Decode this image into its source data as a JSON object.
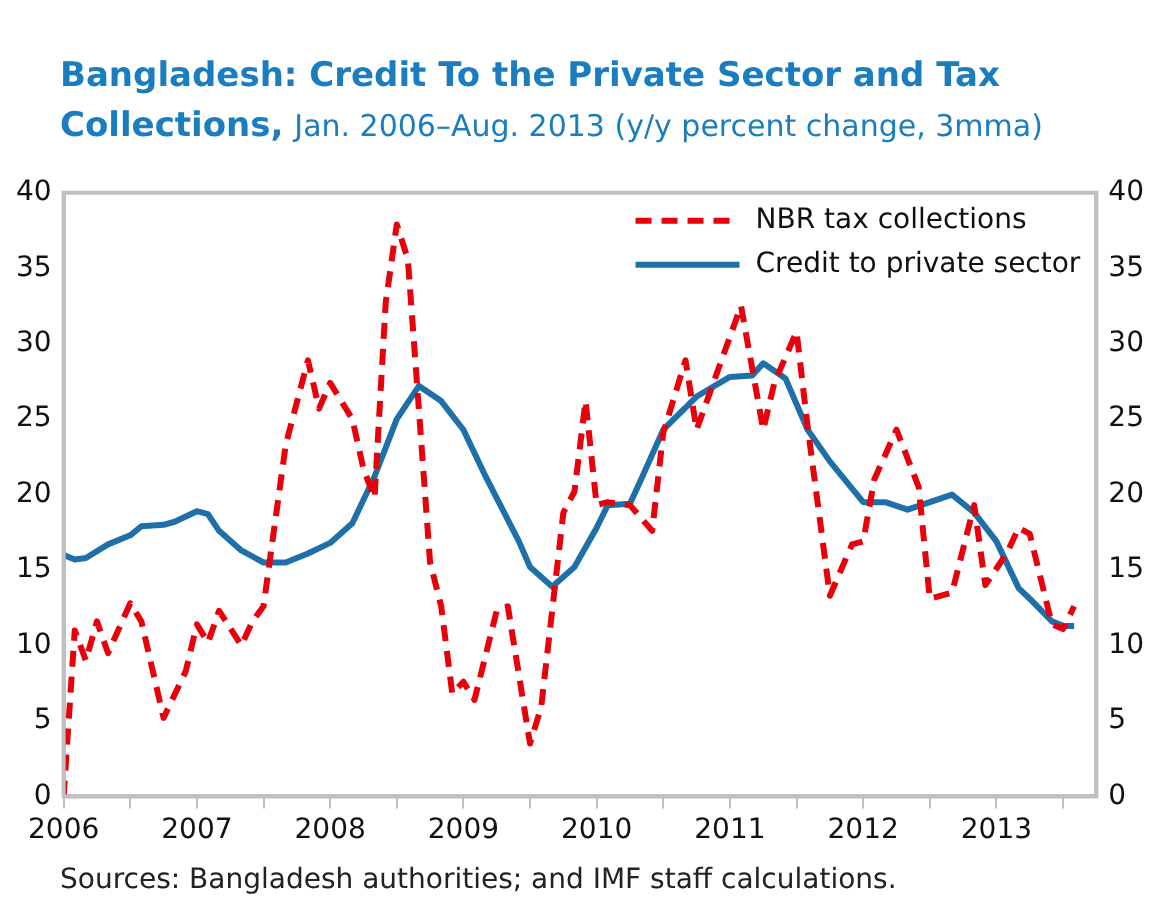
{
  "chart_data": {
    "type": "line",
    "title": "Bangladesh: Credit To the Private Sector and Tax Collections,",
    "subtitle": "Jan. 2006–Aug. 2013 (y/y percent change, 3mma)",
    "annotations": [
      "Sources: Bangladesh authorities; and IMF staff calculations."
    ],
    "legend": "top right",
    "grid": false,
    "marker": "none",
    "xlim": [
      "2006-01",
      "2013-10"
    ],
    "xticks": [
      "2006",
      {
        "value": "2006-07",
        "label": null
      },
      "2007",
      {
        "value": "2007-07",
        "label": null
      },
      "2008",
      {
        "value": "2008-07",
        "label": null
      },
      "2009",
      {
        "value": "2009-07",
        "label": null
      },
      "2010",
      {
        "value": "2010-07",
        "label": null
      },
      "2011",
      {
        "value": "2011-07",
        "label": null
      },
      "2012",
      {
        "value": "2012-07",
        "label": null
      },
      "2013",
      {
        "value": "2013-07",
        "label": null
      }
    ],
    "ylim": [
      0,
      40
    ],
    "yticks": [
      0,
      5,
      10,
      15,
      20,
      25,
      30,
      35,
      40
    ],
    "y2lim": [
      0,
      40
    ],
    "y2ticks": [
      0,
      5,
      10,
      15,
      20,
      25,
      30,
      35,
      40
    ],
    "series": [
      {
        "name": "NBR tax collections",
        "color": "#e8000b",
        "line_style": "dashed",
        "x": [
          "2006-01",
          "2006-02",
          "2006-03",
          "2006-04",
          "2006-05",
          "2006-07",
          "2006-08",
          "2006-10",
          "2006-12",
          "2007-01",
          "2007-02",
          "2007-03",
          "2007-05",
          "2007-06",
          "2007-07",
          "2007-09",
          "2007-11",
          "2007-12",
          "2008-01",
          "2008-03",
          "2008-04",
          "2008-05",
          "2008-06",
          "2008-07",
          "2008-08",
          "2008-10",
          "2008-11",
          "2008-12",
          "2009-01",
          "2009-02",
          "2009-04",
          "2009-05",
          "2009-07",
          "2009-08",
          "2009-10",
          "2009-11",
          "2009-12",
          "2010-01",
          "2010-02",
          "2010-04",
          "2010-06",
          "2010-07",
          "2010-09",
          "2010-10",
          "2011-02",
          "2011-04",
          "2011-05",
          "2011-07",
          "2011-08",
          "2011-10",
          "2011-12",
          "2012-01",
          "2012-02",
          "2012-04",
          "2012-06",
          "2012-07",
          "2012-09",
          "2012-11",
          "2012-12",
          "2013-02",
          "2013-03",
          "2013-04",
          "2013-06",
          "2013-07",
          "2013-08"
        ],
        "values": [
          0,
          11,
          9,
          11.6,
          9.5,
          12.8,
          11.6,
          5.2,
          8.3,
          11.4,
          10.2,
          12.3,
          10,
          11.6,
          12.6,
          23.3,
          28.9,
          25.7,
          27.4,
          25,
          21.7,
          19.8,
          32.7,
          37.9,
          35.6,
          15.5,
          12.6,
          6.8,
          7.6,
          6.4,
          12.3,
          12.6,
          3.5,
          5.9,
          18.8,
          20.2,
          26.2,
          19.3,
          19.5,
          19.3,
          17.6,
          24.1,
          28.9,
          24.3,
          32.5,
          24.3,
          27.4,
          30.8,
          24.5,
          13.3,
          16.7,
          16.9,
          21,
          24.3,
          20.5,
          13.1,
          13.5,
          19.3,
          14,
          16.2,
          17.8,
          17.4,
          11.4,
          11.1,
          12.6
        ]
      },
      {
        "name": "Credit to private sector",
        "color": "#1f6fa8",
        "line_style": "solid",
        "x": [
          "2006-01",
          "2006-02",
          "2006-03",
          "2006-05",
          "2006-07",
          "2006-08",
          "2006-10",
          "2006-11",
          "2007-01",
          "2007-02",
          "2007-03",
          "2007-05",
          "2007-07",
          "2007-09",
          "2007-11",
          "2008-01",
          "2008-03",
          "2008-05",
          "2008-07",
          "2008-09",
          "2008-11",
          "2009-01",
          "2009-03",
          "2009-06",
          "2009-07",
          "2009-09",
          "2009-11",
          "2010-01",
          "2010-02",
          "2010-04",
          "2010-05",
          "2010-07",
          "2010-10",
          "2011-01",
          "2011-03",
          "2011-04",
          "2011-06",
          "2011-08",
          "2011-10",
          "2012-01",
          "2012-03",
          "2012-05",
          "2012-07",
          "2012-09",
          "2012-11",
          "2013-01",
          "2013-03",
          "2013-04",
          "2013-06",
          "2013-07",
          "2013-08"
        ],
        "values": [
          16,
          15.7,
          15.8,
          16.7,
          17.3,
          17.9,
          18,
          18.2,
          18.9,
          18.7,
          17.6,
          16.3,
          15.5,
          15.5,
          16.1,
          16.8,
          18.1,
          21.2,
          25,
          27.2,
          26.2,
          24.3,
          21.2,
          16.9,
          15.2,
          13.9,
          15.2,
          17.8,
          19.3,
          19.4,
          21,
          24.3,
          26.5,
          27.8,
          27.9,
          28.7,
          27.7,
          24.3,
          22.2,
          19.5,
          19.5,
          19,
          19.5,
          20,
          18.8,
          16.9,
          13.8,
          13.1,
          11.6,
          11.3,
          11.3
        ]
      }
    ]
  }
}
